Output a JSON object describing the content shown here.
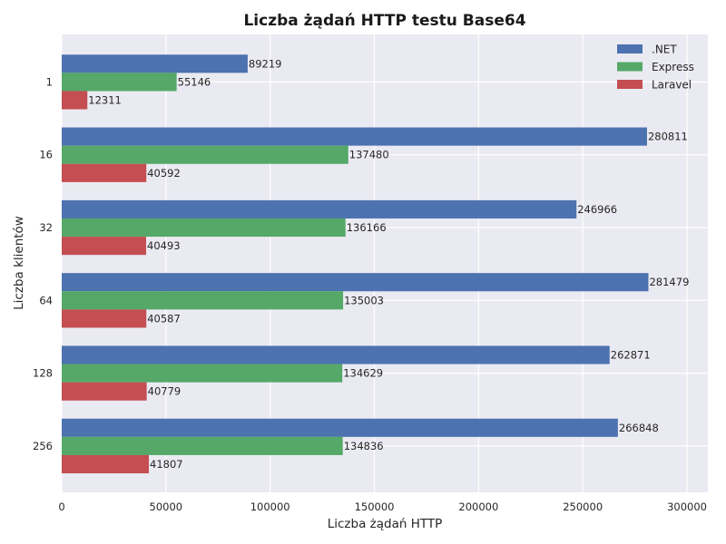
{
  "chart_data": {
    "type": "bar",
    "orientation": "horizontal",
    "title": "Liczba żądań HTTP testu Base64",
    "xlabel": "Liczba żądań HTTP",
    "ylabel": "Liczba klientów",
    "categories": [
      "1",
      "16",
      "32",
      "64",
      "128",
      "256"
    ],
    "series": [
      {
        "name": ".NET",
        "color": "#4c72b0",
        "values": [
          89219,
          280811,
          246966,
          281479,
          262871,
          266848
        ]
      },
      {
        "name": "Express",
        "color": "#55a868",
        "values": [
          55146,
          137480,
          136166,
          135003,
          134629,
          134836
        ]
      },
      {
        "name": "Laravel",
        "color": "#c44e52",
        "values": [
          12311,
          40592,
          40493,
          40587,
          40779,
          41807
        ]
      }
    ],
    "xlim": [
      0,
      310000
    ],
    "xticks": [
      0,
      50000,
      100000,
      150000,
      200000,
      250000,
      300000
    ],
    "grid": true,
    "legend_position": "top-right",
    "background_color": "#eaeaf2"
  }
}
